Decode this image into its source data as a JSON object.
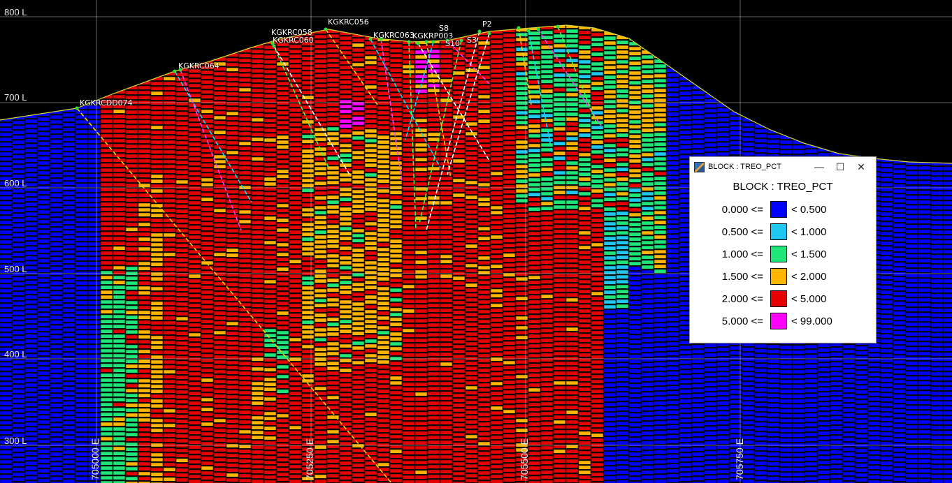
{
  "legend": {
    "window_title": "BLOCK : TREO_PCT",
    "heading": "BLOCK : TREO_PCT",
    "minimize": "—",
    "maximize": "☐",
    "close": "✕",
    "rows": [
      {
        "lower": "0.000 <=",
        "upper": "< 0.500",
        "color": "#0000ff"
      },
      {
        "lower": "0.500 <=",
        "upper": "< 1.000",
        "color": "#1ec8f0"
      },
      {
        "lower": "1.000 <=",
        "upper": "< 1.500",
        "color": "#1ee678"
      },
      {
        "lower": "1.500 <=",
        "upper": "< 2.000",
        "color": "#ffb400"
      },
      {
        "lower": "2.000 <=",
        "upper": "< 5.000",
        "color": "#e60000"
      },
      {
        "lower": "5.000 <=",
        "upper": "< 99.000",
        "color": "#ff00ff"
      }
    ]
  },
  "elevation_labels": [
    "800 L",
    "700 L",
    "600 L",
    "500 L",
    "400 L",
    "300 L"
  ],
  "easting_labels": [
    "705000 E",
    "705250 E",
    "705500 E",
    "705750 E"
  ],
  "drillholes": [
    "KGKRC056",
    "KGKRC058",
    "KGKRC060",
    "KGKRC063",
    "KGKRC064",
    "KGKRCDD074",
    "KGKRP003",
    "S8",
    "S10",
    "S3",
    "P2"
  ]
}
